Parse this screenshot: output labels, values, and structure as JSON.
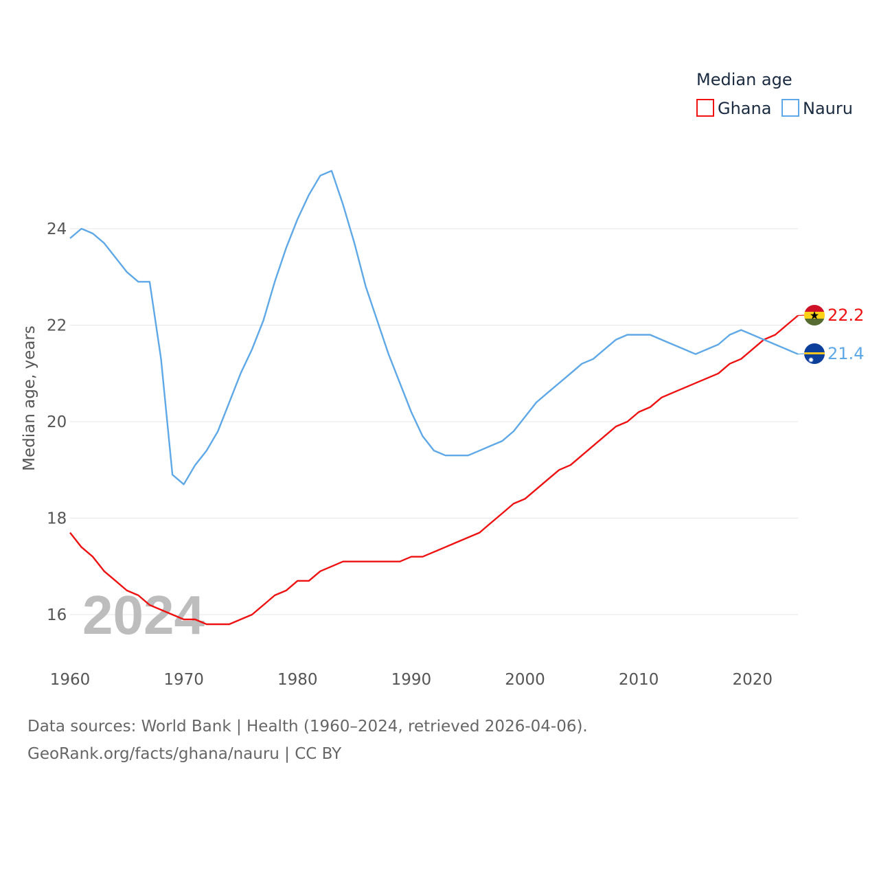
{
  "chart_data": {
    "type": "line",
    "title": "",
    "xlabel": "",
    "ylabel": "Median age, years",
    "legend_title": "Median age",
    "legend_position": "top-right",
    "xlim": [
      1960,
      2024
    ],
    "ylim": [
      15,
      25.5
    ],
    "x_ticks": [
      1960,
      1970,
      1980,
      1990,
      2000,
      2010,
      2020
    ],
    "y_ticks": [
      16,
      18,
      20,
      22,
      24
    ],
    "grid": true,
    "watermark_year": "2024",
    "x": [
      1960,
      1961,
      1962,
      1963,
      1964,
      1965,
      1966,
      1967,
      1968,
      1969,
      1970,
      1971,
      1972,
      1973,
      1974,
      1975,
      1976,
      1977,
      1978,
      1979,
      1980,
      1981,
      1982,
      1983,
      1984,
      1985,
      1986,
      1987,
      1988,
      1989,
      1990,
      1991,
      1992,
      1993,
      1994,
      1995,
      1996,
      1997,
      1998,
      1999,
      2000,
      2001,
      2002,
      2003,
      2004,
      2005,
      2006,
      2007,
      2008,
      2009,
      2010,
      2011,
      2012,
      2013,
      2014,
      2015,
      2016,
      2017,
      2018,
      2019,
      2020,
      2021,
      2022,
      2023,
      2024
    ],
    "series": [
      {
        "name": "Ghana",
        "color": "#ee1111",
        "end_label": "22.2",
        "flag": "ghana-flag",
        "values": [
          17.7,
          17.4,
          17.2,
          16.9,
          16.7,
          16.5,
          16.4,
          16.2,
          16.1,
          16.0,
          15.9,
          15.9,
          15.8,
          15.8,
          15.8,
          15.9,
          16.0,
          16.2,
          16.4,
          16.5,
          16.7,
          16.7,
          16.9,
          17.0,
          17.1,
          17.1,
          17.1,
          17.1,
          17.1,
          17.1,
          17.2,
          17.2,
          17.3,
          17.4,
          17.5,
          17.6,
          17.7,
          17.9,
          18.1,
          18.3,
          18.4,
          18.6,
          18.8,
          19.0,
          19.1,
          19.3,
          19.5,
          19.7,
          19.9,
          20.0,
          20.2,
          20.3,
          20.5,
          20.6,
          20.7,
          20.8,
          20.9,
          21.0,
          21.2,
          21.3,
          21.5,
          21.7,
          21.8,
          22.0,
          22.2
        ]
      },
      {
        "name": "Nauru",
        "color": "#5ea8e8",
        "end_label": "21.4",
        "flag": "nauru-flag",
        "values": [
          23.8,
          24.0,
          23.9,
          23.7,
          23.4,
          23.1,
          22.9,
          22.9,
          21.3,
          18.9,
          18.7,
          19.1,
          19.4,
          19.8,
          20.4,
          21.0,
          21.5,
          22.1,
          22.9,
          23.6,
          24.2,
          24.7,
          25.1,
          25.2,
          24.5,
          23.7,
          22.8,
          22.1,
          21.4,
          20.8,
          20.2,
          19.7,
          19.4,
          19.3,
          19.3,
          19.3,
          19.4,
          19.5,
          19.6,
          19.8,
          20.1,
          20.4,
          20.6,
          20.8,
          21.0,
          21.2,
          21.3,
          21.5,
          21.7,
          21.8,
          21.8,
          21.8,
          21.7,
          21.6,
          21.5,
          21.4,
          21.5,
          21.6,
          21.8,
          21.9,
          21.8,
          21.7,
          21.6,
          21.5,
          21.4
        ]
      }
    ]
  },
  "footer": {
    "source": "Data sources: World Bank | Health (1960–2024, retrieved 2026-04-06).",
    "link": "GeoRank.org/facts/ghana/nauru | CC BY"
  }
}
